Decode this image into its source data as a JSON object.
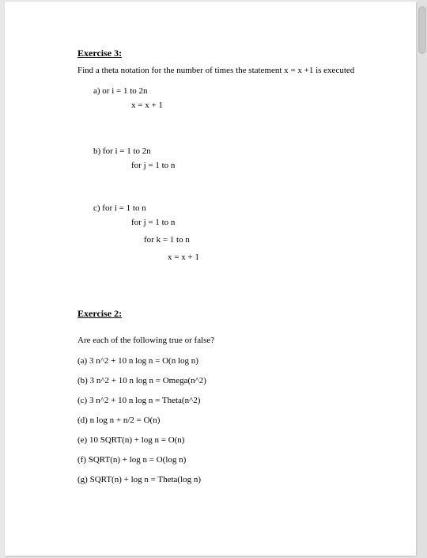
{
  "exercise3": {
    "heading": "Exercise 3:",
    "prompt": "Find a theta notation for the number of times the statement x = x +1 is executed",
    "parts": {
      "a_label": "a)   or i = 1 to 2n",
      "a_body": "x = x + 1",
      "b_label": "b)   for i = 1 to 2n",
      "b_body": "for j = 1 to n",
      "c_label": "c)   for i = 1 to n",
      "c_body1": "for j = 1 to n",
      "c_body2": "for k = 1 to n",
      "c_body3": "x = x + 1"
    }
  },
  "exercise2": {
    "heading": "Exercise 2:",
    "prompt": "Are each of the following true or false?",
    "items": {
      "a": "(a) 3 n^2 + 10 n log n = O(n log n)",
      "b": "(b) 3 n^2 + 10 n log n = Omega(n^2)",
      "c": "(c) 3 n^2 + 10 n log n = Theta(n^2)",
      "d": "(d) n log n + n/2 = O(n)",
      "e": "(e) 10 SQRT(n) + log n = O(n)",
      "f": "(f) SQRT(n) + log n = O(log n)",
      "g": "(g) SQRT(n) + log n = Theta(log n)"
    }
  }
}
